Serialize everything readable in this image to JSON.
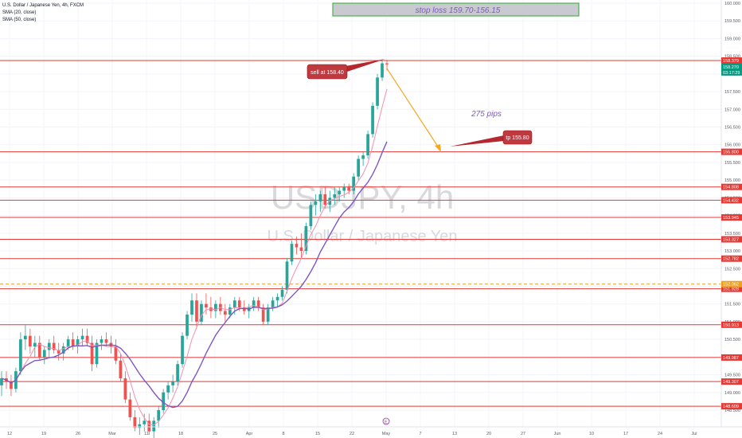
{
  "symbol": {
    "title": "U.S. Dollar / Japanese Yen, 4h, FXCM",
    "indicator_1": "SMA (20, close)",
    "indicator_2": "SMA (50, close)",
    "watermark_ticker": "USDJPY, 4h",
    "watermark_name": "U.S. Dollar / Japanese Yen"
  },
  "colors": {
    "candle_up": "#26a69a",
    "candle_down": "#ef5350",
    "sma20": "#f48fb1",
    "sma50": "#7e57c2",
    "level_line": "#e53935",
    "target_arrow": "#f5a623",
    "annotation_text": "#7e57c2",
    "stop_box_fill": "#c8cad0",
    "stop_box_border": "#4caf50"
  },
  "annotations": {
    "stop_loss": "stop loss 159.70-156.15",
    "sell_label": "sell at 158.40",
    "tp_label": "tp 155.80",
    "pips_label": "275 pips",
    "event_marker": "E"
  },
  "chart_data": {
    "type": "candlestick",
    "ylim": [
      148.0,
      160.0
    ],
    "y_ticks": [
      "160.000",
      "159.500",
      "159.000",
      "158.500",
      "158.000",
      "157.500",
      "157.000",
      "156.500",
      "156.000",
      "155.500",
      "155.000",
      "154.500",
      "154.000",
      "153.500",
      "153.000",
      "152.500",
      "152.000",
      "151.500",
      "151.000",
      "150.500",
      "150.000",
      "149.500",
      "149.000",
      "148.500"
    ],
    "x_ticks": [
      "12",
      "19",
      "26",
      "Mar",
      "11",
      "18",
      "25",
      "Apr",
      "8",
      "15",
      "22",
      "May",
      "7",
      "13",
      "20",
      "27",
      "Jun",
      "10",
      "17",
      "24",
      "Jul"
    ],
    "horizontal_levels": [
      "158.379",
      "155.800",
      "154.808",
      "154.432",
      "153.945",
      "153.327",
      "152.782",
      "151.928",
      "150.913",
      "149.987",
      "149.307",
      "148.609"
    ],
    "current_price": "158.270",
    "countdown": "03:17:29",
    "dashed_level": "152.062",
    "candles": [
      {
        "o": 149.2,
        "h": 149.6,
        "l": 148.9,
        "c": 149.4
      },
      {
        "o": 149.4,
        "h": 149.6,
        "l": 149.1,
        "c": 149.3
      },
      {
        "o": 149.3,
        "h": 149.5,
        "l": 148.9,
        "c": 149.1
      },
      {
        "o": 149.1,
        "h": 149.7,
        "l": 149.0,
        "c": 149.6
      },
      {
        "o": 149.6,
        "h": 150.7,
        "l": 149.5,
        "c": 150.5
      },
      {
        "o": 150.5,
        "h": 150.9,
        "l": 150.2,
        "c": 150.6
      },
      {
        "o": 150.6,
        "h": 150.8,
        "l": 150.1,
        "c": 150.3
      },
      {
        "o": 150.3,
        "h": 150.6,
        "l": 150.0,
        "c": 150.4
      },
      {
        "o": 150.4,
        "h": 150.6,
        "l": 149.9,
        "c": 150.0
      },
      {
        "o": 150.0,
        "h": 150.3,
        "l": 149.8,
        "c": 150.2
      },
      {
        "o": 150.2,
        "h": 150.5,
        "l": 150.0,
        "c": 150.4
      },
      {
        "o": 150.4,
        "h": 150.6,
        "l": 150.1,
        "c": 150.2
      },
      {
        "o": 150.2,
        "h": 150.4,
        "l": 149.9,
        "c": 150.1
      },
      {
        "o": 150.1,
        "h": 150.4,
        "l": 149.9,
        "c": 150.3
      },
      {
        "o": 150.3,
        "h": 150.6,
        "l": 150.2,
        "c": 150.5
      },
      {
        "o": 150.5,
        "h": 150.7,
        "l": 150.2,
        "c": 150.3
      },
      {
        "o": 150.3,
        "h": 150.6,
        "l": 150.1,
        "c": 150.5
      },
      {
        "o": 150.5,
        "h": 150.8,
        "l": 150.3,
        "c": 150.6
      },
      {
        "o": 150.6,
        "h": 150.8,
        "l": 150.3,
        "c": 150.4
      },
      {
        "o": 150.4,
        "h": 150.6,
        "l": 149.6,
        "c": 149.8
      },
      {
        "o": 149.8,
        "h": 150.5,
        "l": 149.7,
        "c": 150.4
      },
      {
        "o": 150.4,
        "h": 150.6,
        "l": 150.2,
        "c": 150.5
      },
      {
        "o": 150.5,
        "h": 150.7,
        "l": 150.3,
        "c": 150.4
      },
      {
        "o": 150.4,
        "h": 150.6,
        "l": 150.1,
        "c": 150.3
      },
      {
        "o": 150.3,
        "h": 150.5,
        "l": 149.8,
        "c": 149.9
      },
      {
        "o": 149.9,
        "h": 150.1,
        "l": 149.3,
        "c": 149.4
      },
      {
        "o": 149.4,
        "h": 149.6,
        "l": 148.7,
        "c": 148.8
      },
      {
        "o": 148.8,
        "h": 149.0,
        "l": 148.2,
        "c": 148.3
      },
      {
        "o": 148.3,
        "h": 148.5,
        "l": 147.9,
        "c": 148.0
      },
      {
        "o": 148.0,
        "h": 148.3,
        "l": 147.8,
        "c": 148.1
      },
      {
        "o": 148.1,
        "h": 148.4,
        "l": 147.9,
        "c": 148.2
      },
      {
        "o": 148.2,
        "h": 148.4,
        "l": 147.8,
        "c": 147.9
      },
      {
        "o": 147.9,
        "h": 148.3,
        "l": 147.7,
        "c": 148.2
      },
      {
        "o": 148.2,
        "h": 148.6,
        "l": 148.0,
        "c": 148.5
      },
      {
        "o": 148.5,
        "h": 149.1,
        "l": 148.4,
        "c": 149.0
      },
      {
        "o": 149.0,
        "h": 149.3,
        "l": 148.8,
        "c": 149.2
      },
      {
        "o": 149.2,
        "h": 149.5,
        "l": 149.0,
        "c": 149.3
      },
      {
        "o": 149.3,
        "h": 149.9,
        "l": 149.2,
        "c": 149.8
      },
      {
        "o": 149.8,
        "h": 150.7,
        "l": 149.7,
        "c": 150.6
      },
      {
        "o": 150.6,
        "h": 151.3,
        "l": 150.5,
        "c": 151.2
      },
      {
        "o": 151.2,
        "h": 151.8,
        "l": 151.0,
        "c": 151.6
      },
      {
        "o": 151.6,
        "h": 151.8,
        "l": 150.8,
        "c": 151.0
      },
      {
        "o": 151.0,
        "h": 151.6,
        "l": 150.9,
        "c": 151.5
      },
      {
        "o": 151.5,
        "h": 151.8,
        "l": 151.2,
        "c": 151.4
      },
      {
        "o": 151.4,
        "h": 151.7,
        "l": 151.1,
        "c": 151.3
      },
      {
        "o": 151.3,
        "h": 151.6,
        "l": 151.1,
        "c": 151.5
      },
      {
        "o": 151.5,
        "h": 151.7,
        "l": 151.2,
        "c": 151.3
      },
      {
        "o": 151.3,
        "h": 151.5,
        "l": 151.0,
        "c": 151.2
      },
      {
        "o": 151.2,
        "h": 151.5,
        "l": 151.1,
        "c": 151.4
      },
      {
        "o": 151.4,
        "h": 151.7,
        "l": 151.2,
        "c": 151.6
      },
      {
        "o": 151.6,
        "h": 151.7,
        "l": 151.3,
        "c": 151.4
      },
      {
        "o": 151.4,
        "h": 151.6,
        "l": 151.2,
        "c": 151.3
      },
      {
        "o": 151.3,
        "h": 151.5,
        "l": 151.1,
        "c": 151.4
      },
      {
        "o": 151.4,
        "h": 151.7,
        "l": 151.3,
        "c": 151.6
      },
      {
        "o": 151.6,
        "h": 151.7,
        "l": 151.3,
        "c": 151.4
      },
      {
        "o": 151.4,
        "h": 151.5,
        "l": 150.9,
        "c": 151.0
      },
      {
        "o": 151.0,
        "h": 151.5,
        "l": 150.9,
        "c": 151.4
      },
      {
        "o": 151.4,
        "h": 151.7,
        "l": 151.3,
        "c": 151.6
      },
      {
        "o": 151.6,
        "h": 151.8,
        "l": 151.4,
        "c": 151.7
      },
      {
        "o": 151.7,
        "h": 152.0,
        "l": 151.6,
        "c": 151.9
      },
      {
        "o": 151.9,
        "h": 152.8,
        "l": 151.8,
        "c": 152.7
      },
      {
        "o": 152.7,
        "h": 153.3,
        "l": 152.6,
        "c": 153.2
      },
      {
        "o": 153.2,
        "h": 153.4,
        "l": 152.9,
        "c": 153.1
      },
      {
        "o": 153.1,
        "h": 153.5,
        "l": 152.8,
        "c": 153.0
      },
      {
        "o": 153.0,
        "h": 153.8,
        "l": 152.9,
        "c": 153.7
      },
      {
        "o": 153.7,
        "h": 154.4,
        "l": 153.6,
        "c": 154.3
      },
      {
        "o": 154.3,
        "h": 154.6,
        "l": 154.0,
        "c": 154.4
      },
      {
        "o": 154.4,
        "h": 154.7,
        "l": 154.1,
        "c": 154.6
      },
      {
        "o": 154.6,
        "h": 154.8,
        "l": 154.2,
        "c": 154.3
      },
      {
        "o": 154.3,
        "h": 154.7,
        "l": 154.1,
        "c": 154.5
      },
      {
        "o": 154.5,
        "h": 154.8,
        "l": 154.3,
        "c": 154.6
      },
      {
        "o": 154.6,
        "h": 154.8,
        "l": 154.4,
        "c": 154.7
      },
      {
        "o": 154.7,
        "h": 154.9,
        "l": 154.5,
        "c": 154.8
      },
      {
        "o": 154.8,
        "h": 154.9,
        "l": 154.6,
        "c": 154.7
      },
      {
        "o": 154.7,
        "h": 155.2,
        "l": 154.6,
        "c": 155.1
      },
      {
        "o": 155.1,
        "h": 155.7,
        "l": 155.0,
        "c": 155.6
      },
      {
        "o": 155.6,
        "h": 155.8,
        "l": 155.4,
        "c": 155.7
      },
      {
        "o": 155.7,
        "h": 156.4,
        "l": 155.6,
        "c": 156.3
      },
      {
        "o": 156.3,
        "h": 157.2,
        "l": 156.2,
        "c": 157.1
      },
      {
        "o": 157.1,
        "h": 158.0,
        "l": 157.0,
        "c": 157.9
      },
      {
        "o": 157.9,
        "h": 158.4,
        "l": 157.8,
        "c": 158.3
      },
      {
        "o": 158.3,
        "h": 158.4,
        "l": 158.1,
        "c": 158.27
      }
    ]
  }
}
